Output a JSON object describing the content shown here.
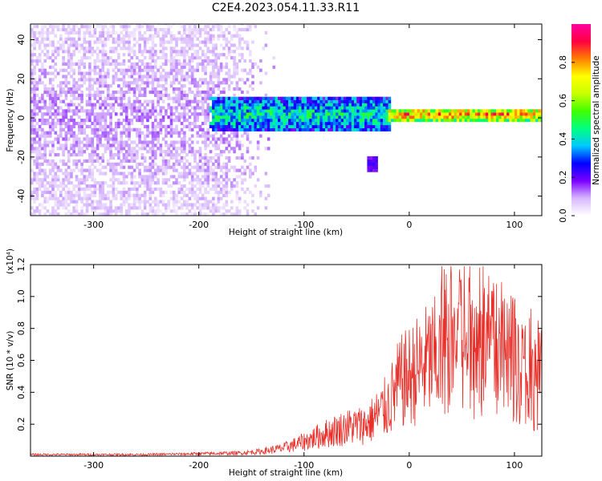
{
  "title": "C2E4.2023.054.11.33.R11",
  "chart_data": [
    {
      "type": "heatmap",
      "xlabel": "Height of straight line (km)",
      "ylabel": "Frequency (Hz)",
      "xlim": [
        -360,
        126
      ],
      "ylim": [
        -50,
        48
      ],
      "xticks": [
        -300,
        -200,
        -100,
        0,
        100
      ],
      "yticks": [
        -40,
        -20,
        0,
        20,
        40
      ],
      "colorbar": {
        "label": "Normalized spectral amplitude",
        "range": [
          0.0,
          1.0
        ],
        "ticks": [
          "0.0",
          "0.2",
          "0.4",
          "0.6",
          "0.8"
        ],
        "tick_values": [
          0.0,
          0.2,
          0.4,
          0.6,
          0.8
        ],
        "colors": [
          "#ffffff",
          "#d8b8ff",
          "#7a00ff",
          "#0000ff",
          "#00c8ff",
          "#00ff80",
          "#40ff00",
          "#c8ff00",
          "#ffff00",
          "#ff8000",
          "#ff0040",
          "#ff00a0"
        ]
      },
      "regions": [
        {
          "x": [
            -360,
            -130
          ],
          "f": [
            -50,
            48
          ],
          "amplitude": [
            0.02,
            0.15
          ],
          "description_x": "scattered noise"
        },
        {
          "x": [
            -190,
            -20
          ],
          "f": [
            -8,
            10
          ],
          "amplitude": [
            0.15,
            0.55
          ]
        },
        {
          "x": [
            -20,
            126
          ],
          "f": [
            -2,
            4
          ],
          "amplitude": [
            0.4,
            0.95
          ]
        },
        {
          "x": [
            -40,
            -32
          ],
          "f": [
            -28,
            -20
          ],
          "amplitude": [
            0.15,
            0.25
          ]
        }
      ]
    },
    {
      "type": "line",
      "xlabel": "Height of straight line (km)",
      "ylabel": "SNR (10 * v/v)",
      "y_multiplier": "(x10⁴)",
      "xlim": [
        -360,
        126
      ],
      "ylim": [
        0,
        1.2
      ],
      "xticks": [
        -300,
        -200,
        -100,
        0,
        100
      ],
      "yticks": [
        "0.2",
        "0.4",
        "0.6",
        "0.8",
        "1.0",
        "1.2"
      ],
      "ytick_values": [
        0.2,
        0.4,
        0.6,
        0.8,
        1.0,
        1.2
      ],
      "series": [
        {
          "color": "#e8302a",
          "x": [
            -360,
            -300,
            -250,
            -200,
            -160,
            -140,
            -120,
            -100,
            -80,
            -60,
            -40,
            -30,
            -20,
            -10,
            0,
            10,
            20,
            30,
            40,
            50,
            60,
            70,
            80,
            90,
            100,
            110,
            120,
            126
          ],
          "y": [
            0.01,
            0.01,
            0.01,
            0.015,
            0.02,
            0.03,
            0.05,
            0.09,
            0.14,
            0.18,
            0.2,
            0.26,
            0.32,
            0.45,
            0.5,
            0.55,
            0.6,
            0.62,
            0.7,
            0.75,
            0.65,
            0.7,
            0.68,
            0.6,
            0.62,
            0.5,
            0.45,
            0.5
          ]
        }
      ]
    }
  ]
}
